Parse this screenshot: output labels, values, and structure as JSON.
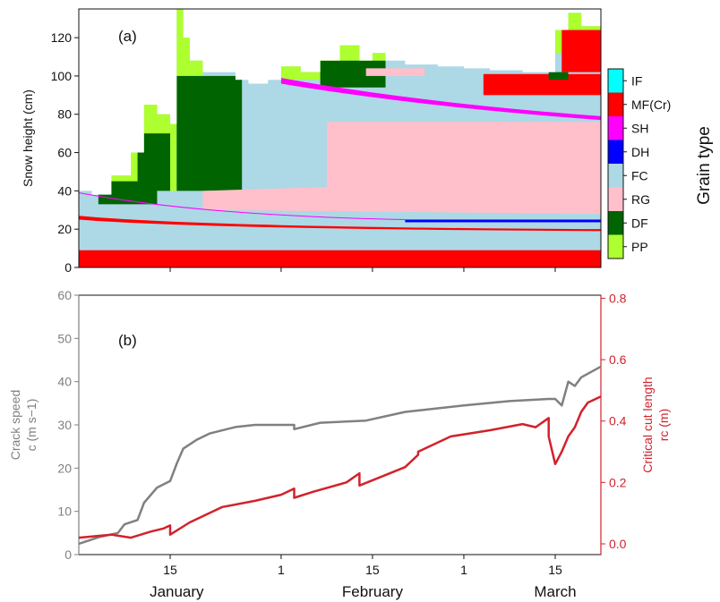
{
  "chart_data": [
    {
      "panel": "(a)",
      "type": "area",
      "ylabel": "Snow height (cm)",
      "ylim": [
        0,
        135
      ],
      "yticks": [
        "0",
        "20",
        "40",
        "60",
        "80",
        "100",
        "120"
      ],
      "x_tick_labels": [
        "15",
        "1",
        "15",
        "1",
        "15"
      ],
      "x_month_labels": [
        "January",
        "February",
        "March"
      ],
      "xlim": [
        "2021-01-01",
        "2021-03-22"
      ],
      "legend": {
        "title": "Grain type",
        "position": "right",
        "entries": [
          {
            "code": "IF",
            "color": "#00ffff"
          },
          {
            "code": "MF(Cr)",
            "color": "#ff0000"
          },
          {
            "code": "SH",
            "color": "#ff00ff"
          },
          {
            "code": "DH",
            "color": "#0000ff"
          },
          {
            "code": "FC",
            "color": "#add8e6"
          },
          {
            "code": "RG",
            "color": "#ffc0cb"
          },
          {
            "code": "DF",
            "color": "#006400"
          },
          {
            "code": "PP",
            "color": "#adff2f"
          }
        ]
      },
      "total_snow_height_cm": [
        [
          "2021-01-01",
          40
        ],
        [
          "2021-01-03",
          38
        ],
        [
          "2021-01-06",
          48
        ],
        [
          "2021-01-09",
          60
        ],
        [
          "2021-01-11",
          85
        ],
        [
          "2021-01-13",
          80
        ],
        [
          "2021-01-15",
          75
        ],
        [
          "2021-01-16",
          135
        ],
        [
          "2021-01-17",
          120
        ],
        [
          "2021-01-18",
          108
        ],
        [
          "2021-01-20",
          102
        ],
        [
          "2021-01-23",
          102
        ],
        [
          "2021-01-25",
          98
        ],
        [
          "2021-01-27",
          96
        ],
        [
          "2021-01-30",
          98
        ],
        [
          "2021-02-01",
          105
        ],
        [
          "2021-02-04",
          102
        ],
        [
          "2021-02-07",
          108
        ],
        [
          "2021-02-10",
          116
        ],
        [
          "2021-02-13",
          108
        ],
        [
          "2021-02-15",
          112
        ],
        [
          "2021-02-17",
          108
        ],
        [
          "2021-02-20",
          106
        ],
        [
          "2021-02-25",
          105
        ],
        [
          "2021-03-01",
          104
        ],
        [
          "2021-03-05",
          103
        ],
        [
          "2021-03-10",
          102
        ],
        [
          "2021-03-15",
          124
        ],
        [
          "2021-03-17",
          133
        ],
        [
          "2021-03-19",
          126
        ],
        [
          "2021-03-22",
          120
        ]
      ],
      "layers": [
        {
          "grain": "MF(Cr)",
          "bottom_cm": 0,
          "top": [
            [
              "2021-01-01",
              9
            ],
            [
              "2021-03-22",
              9
            ]
          ]
        },
        {
          "grain": "FC",
          "bottom_cm": 9,
          "top": [
            [
              "2021-01-01",
              25
            ],
            [
              "2021-03-22",
              20
            ]
          ]
        },
        {
          "grain": "MF(Cr)",
          "bottom_cm": 20,
          "top": [
            [
              "2021-01-01",
              27
            ],
            [
              "2021-01-20",
              22
            ],
            [
              "2021-03-22",
              20
            ]
          ]
        },
        {
          "grain": "DH",
          "start": "2021-02-20",
          "end": "2021-03-22",
          "height_cm": 24
        },
        {
          "grain": "RG",
          "start": "2021-02-08",
          "end": "2021-03-22",
          "bottom_cm": 28,
          "top_cm": 76
        },
        {
          "grain": "SH",
          "start": "2021-02-01",
          "end": "2021-03-22",
          "from_cm": 98,
          "to_cm": 79
        },
        {
          "grain": "MF(Cr)",
          "start": "2021-03-03",
          "end": "2021-03-22",
          "bottom_cm": 90,
          "top_cm": 100
        }
      ]
    },
    {
      "panel": "(b)",
      "type": "line",
      "ylabel_left": "Crack speed",
      "ylabel_left_line2": "c (m s−1)",
      "ylabel_right": "Critical cut length",
      "ylabel_right_line2": "rc (m)",
      "ylim_left": [
        0,
        60
      ],
      "ylim_right": [
        -0.035,
        0.81
      ],
      "yticks_left": [
        "0",
        "10",
        "20",
        "30",
        "40",
        "50",
        "60"
      ],
      "yticks_right": [
        "0.0",
        "0.2",
        "0.4",
        "0.6",
        "0.8"
      ],
      "series": [
        {
          "axis": "left",
          "color": "#808080",
          "points": [
            [
              "2021-01-01",
              2.5
            ],
            [
              "2021-01-04",
              4
            ],
            [
              "2021-01-07",
              5
            ],
            [
              "2021-01-08",
              7
            ],
            [
              "2021-01-10",
              8
            ],
            [
              "2021-01-11",
              12
            ],
            [
              "2021-01-13",
              15.5
            ],
            [
              "2021-01-15",
              17
            ],
            [
              "2021-01-16",
              21
            ],
            [
              "2021-01-17",
              24.5
            ],
            [
              "2021-01-19",
              26.5
            ],
            [
              "2021-01-21",
              28
            ],
            [
              "2021-01-25",
              29.5
            ],
            [
              "2021-01-28",
              30
            ],
            [
              "2021-02-01",
              30
            ],
            [
              "2021-02-03",
              30
            ],
            [
              "2021-02-03",
              29
            ],
            [
              "2021-02-07",
              30.5
            ],
            [
              "2021-02-14",
              31
            ],
            [
              "2021-02-20",
              33
            ],
            [
              "2021-03-01",
              34.5
            ],
            [
              "2021-03-08",
              35.5
            ],
            [
              "2021-03-14",
              36
            ],
            [
              "2021-03-15",
              36
            ],
            [
              "2021-03-16",
              34.5
            ],
            [
              "2021-03-17",
              40
            ],
            [
              "2021-03-18",
              39
            ],
            [
              "2021-03-19",
              41
            ],
            [
              "2021-03-22",
              43.5
            ]
          ]
        },
        {
          "axis": "right",
          "color": "#d2222c",
          "points": [
            [
              "2021-01-01",
              0.02
            ],
            [
              "2021-01-06",
              0.03
            ],
            [
              "2021-01-09",
              0.02
            ],
            [
              "2021-01-12",
              0.04
            ],
            [
              "2021-01-14",
              0.05
            ],
            [
              "2021-01-15",
              0.06
            ],
            [
              "2021-01-15",
              0.03
            ],
            [
              "2021-01-18",
              0.07
            ],
            [
              "2021-01-23",
              0.12
            ],
            [
              "2021-01-28",
              0.14
            ],
            [
              "2021-02-01",
              0.16
            ],
            [
              "2021-02-03",
              0.18
            ],
            [
              "2021-02-03",
              0.15
            ],
            [
              "2021-02-06",
              0.17
            ],
            [
              "2021-02-11",
              0.2
            ],
            [
              "2021-02-13",
              0.23
            ],
            [
              "2021-02-13",
              0.19
            ],
            [
              "2021-02-20",
              0.25
            ],
            [
              "2021-02-22",
              0.29
            ],
            [
              "2021-02-22",
              0.3
            ],
            [
              "2021-02-27",
              0.35
            ],
            [
              "2021-03-05",
              0.37
            ],
            [
              "2021-03-10",
              0.39
            ],
            [
              "2021-03-12",
              0.38
            ],
            [
              "2021-03-14",
              0.41
            ],
            [
              "2021-03-14",
              0.35
            ],
            [
              "2021-03-15",
              0.26
            ],
            [
              "2021-03-16",
              0.3
            ],
            [
              "2021-03-17",
              0.35
            ],
            [
              "2021-03-18",
              0.38
            ],
            [
              "2021-03-19",
              0.43
            ],
            [
              "2021-03-20",
              0.46
            ],
            [
              "2021-03-22",
              0.48
            ]
          ]
        }
      ]
    }
  ]
}
